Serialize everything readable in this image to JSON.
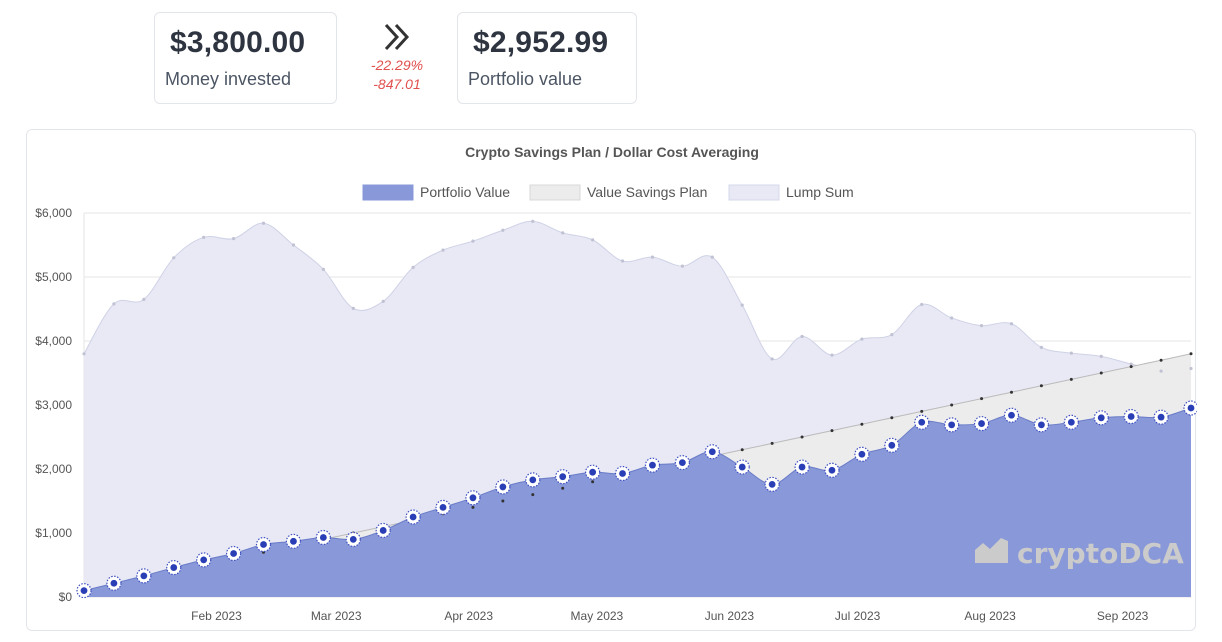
{
  "stats": {
    "invested_value": "$3,800.00",
    "invested_label": "Money invested",
    "change_pct": "-22.29%",
    "change_abs": "-847.01",
    "portfolio_value": "$2,952.99",
    "portfolio_label": "Portfolio value"
  },
  "icons": {
    "change_arrow": "double-chevron-right-icon",
    "watermark_logo": "bar-chart-icon"
  },
  "watermark": "cryptoDCA",
  "colors": {
    "portfolio_fill": "#8898d8",
    "portfolio_stroke": "#6a7cc8",
    "savings_fill": "#ececec",
    "lump_fill": "#e8e9f5",
    "negative": "#e0504e"
  },
  "chart_data": {
    "type": "area",
    "title": "Crypto Savings Plan / Dollar Cost Averaging",
    "legend_position": "top",
    "grid": true,
    "x_ticks": [
      "Feb 2023",
      "Mar 2023",
      "Apr 2023",
      "May 2023",
      "Jun 2023",
      "Jul 2023",
      "Aug 2023",
      "Sep 2023"
    ],
    "y_ticks": [
      "$0",
      "$1,000",
      "$2,000",
      "$3,000",
      "$4,000",
      "$5,000",
      "$6,000"
    ],
    "ylim": [
      0,
      6000
    ],
    "x": [
      "2023-01-01",
      "2023-01-08",
      "2023-01-15",
      "2023-01-22",
      "2023-01-29",
      "2023-02-05",
      "2023-02-12",
      "2023-02-19",
      "2023-02-26",
      "2023-03-05",
      "2023-03-12",
      "2023-03-19",
      "2023-03-26",
      "2023-04-02",
      "2023-04-09",
      "2023-04-16",
      "2023-04-23",
      "2023-04-30",
      "2023-05-07",
      "2023-05-14",
      "2023-05-21",
      "2023-05-28",
      "2023-06-04",
      "2023-06-11",
      "2023-06-18",
      "2023-06-25",
      "2023-07-02",
      "2023-07-09",
      "2023-07-16",
      "2023-07-23",
      "2023-07-30",
      "2023-08-06",
      "2023-08-13",
      "2023-08-20",
      "2023-08-27",
      "2023-09-03",
      "2023-09-10",
      "2023-09-17"
    ],
    "series": [
      {
        "name": "Portfolio Value",
        "values": [
          100,
          215,
          330,
          460,
          580,
          680,
          820,
          870,
          930,
          900,
          1040,
          1250,
          1400,
          1550,
          1720,
          1830,
          1880,
          1950,
          1930,
          2060,
          2100,
          2270,
          2030,
          1760,
          2030,
          1980,
          2230,
          2370,
          2730,
          2690,
          2710,
          2840,
          2690,
          2730,
          2800,
          2820,
          2810,
          2953
        ]
      },
      {
        "name": "Value Savings Plan",
        "values": [
          100,
          200,
          300,
          400,
          500,
          600,
          700,
          800,
          900,
          1000,
          1100,
          1200,
          1300,
          1400,
          1500,
          1600,
          1700,
          1800,
          1900,
          2000,
          2100,
          2200,
          2300,
          2400,
          2500,
          2600,
          2700,
          2800,
          2900,
          3000,
          3100,
          3200,
          3300,
          3400,
          3500,
          3600,
          3700,
          3800
        ]
      },
      {
        "name": "Lump Sum",
        "values": [
          3800,
          4580,
          4650,
          5300,
          5620,
          5600,
          5840,
          5500,
          5120,
          4510,
          4620,
          5150,
          5420,
          5560,
          5730,
          5870,
          5690,
          5580,
          5250,
          5310,
          5170,
          5310,
          4560,
          3720,
          4070,
          3780,
          4030,
          4100,
          4570,
          4360,
          4240,
          4270,
          3900,
          3810,
          3760,
          3640,
          3530,
          3570
        ]
      }
    ]
  }
}
